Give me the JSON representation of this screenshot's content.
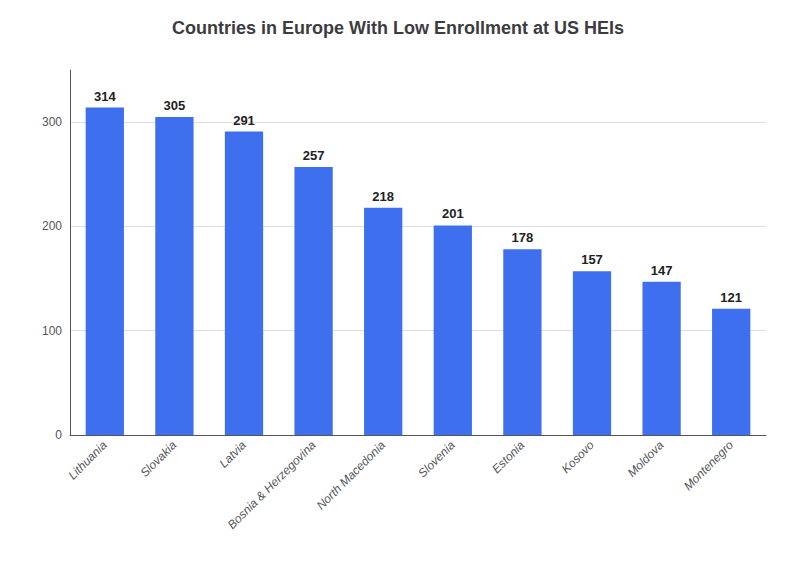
{
  "chart_data": {
    "type": "bar",
    "title": "Countries in Europe With Low Enrollment at US HEIs",
    "categories": [
      "Lithuania",
      "Slovakia",
      "Latvia",
      "Bosnia & Herzegovina",
      "North Macedonia",
      "Slovenia",
      "Estonia",
      "Kosovo",
      "Moldova",
      "Montenegro"
    ],
    "values": [
      314,
      305,
      291,
      257,
      218,
      201,
      178,
      157,
      147,
      121
    ],
    "color": "#3d6fef",
    "ylim": [
      0,
      350
    ],
    "yticks": [
      0,
      100,
      200,
      300
    ],
    "grid": true,
    "data_labels": true
  }
}
